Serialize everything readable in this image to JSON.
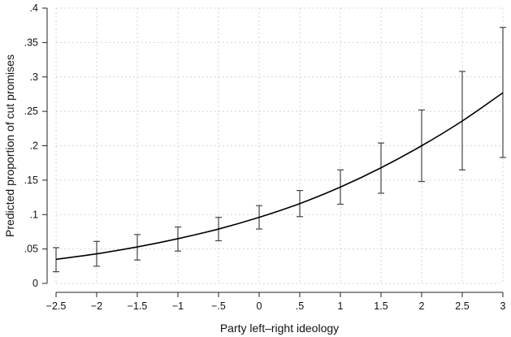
{
  "chart_data": {
    "type": "line",
    "title": "",
    "xlabel": "Party left–right ideology",
    "ylabel": "Predicted proportion of cut promises",
    "xlim": [
      -2.5,
      3
    ],
    "ylim": [
      0,
      0.4
    ],
    "x_ticks": [
      -2.5,
      -2,
      -1.5,
      -1,
      -0.5,
      0,
      0.5,
      1,
      1.5,
      2,
      2.5,
      3
    ],
    "x_tick_labels": [
      "−2.5",
      "−2",
      "−1.5",
      "−1",
      "−.5",
      "0",
      ".5",
      "1",
      "1.5",
      "2",
      "2.5",
      "3"
    ],
    "y_ticks": [
      0,
      0.05,
      0.1,
      0.15,
      0.2,
      0.25,
      0.3,
      0.35,
      0.4
    ],
    "y_tick_labels": [
      "0",
      ".05",
      ".1",
      ".15",
      ".2",
      ".25",
      ".3",
      ".35",
      ".4"
    ],
    "grid": true,
    "series": [
      {
        "x": [
          -2.5,
          -2,
          -1.5,
          -1,
          -0.5,
          0,
          0.5,
          1,
          1.5,
          2,
          2.5,
          3
        ],
        "y": [
          0.035,
          0.043,
          0.053,
          0.065,
          0.079,
          0.096,
          0.116,
          0.14,
          0.168,
          0.2,
          0.236,
          0.277
        ],
        "ci_lower": [
          0.017,
          0.025,
          0.034,
          0.047,
          0.062,
          0.079,
          0.097,
          0.115,
          0.131,
          0.148,
          0.165,
          0.183
        ],
        "ci_upper": [
          0.052,
          0.061,
          0.071,
          0.082,
          0.096,
          0.113,
          0.135,
          0.165,
          0.204,
          0.252,
          0.308,
          0.372
        ]
      }
    ]
  }
}
